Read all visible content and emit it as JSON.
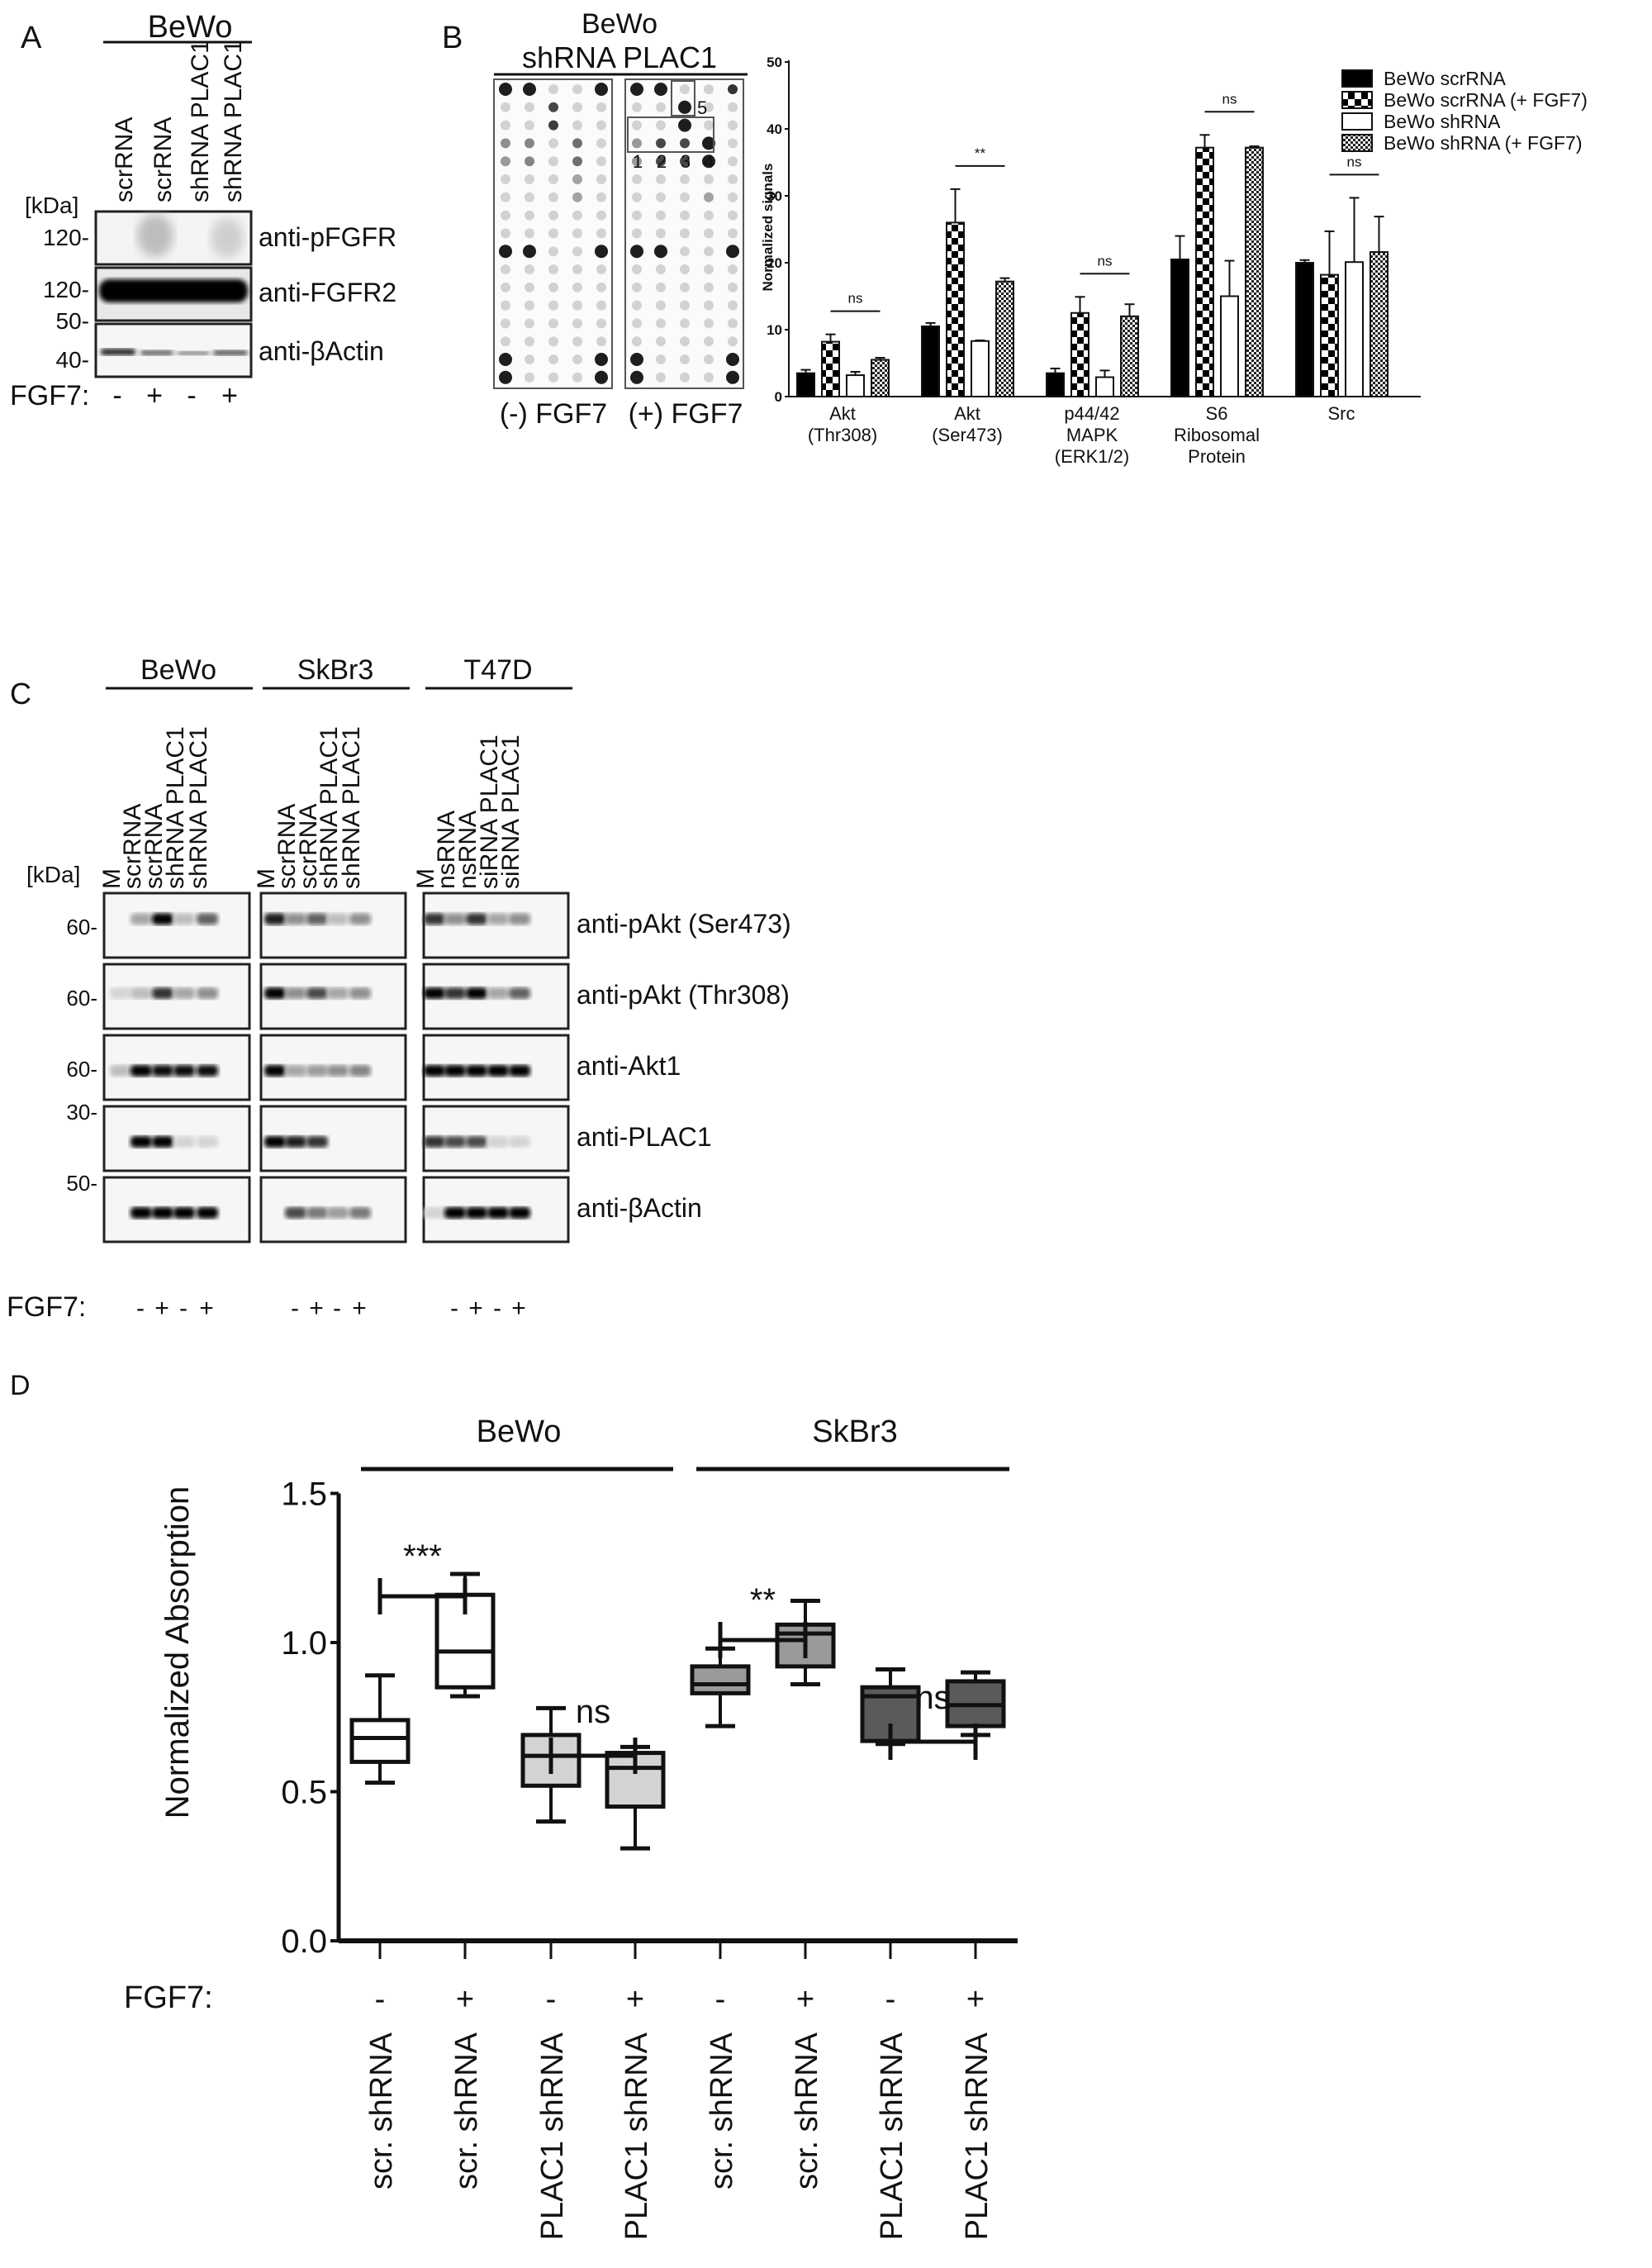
{
  "panel_a": {
    "letter": "A",
    "cell_line": "BeWo",
    "lanes": [
      "scrRNA",
      "scrRNA",
      "shRNA PLAC1",
      "shRNA PLAC1"
    ],
    "kda_label": "[kDa]",
    "markers": [
      "120-",
      "120-",
      "50-",
      "40-"
    ],
    "blots": [
      "anti-pFGFR",
      "anti-FGFR2",
      "anti-βActin"
    ],
    "fgf7_label": "FGF7:",
    "fgf7": [
      "-",
      "+",
      "-",
      "+"
    ]
  },
  "panel_b": {
    "letter": "B",
    "title_line1": "BeWo",
    "title_line2": "shRNA PLAC1",
    "array_labels": [
      "(-) FGF7",
      "(+) FGF7"
    ],
    "box_numbers": [
      "1",
      "2",
      "3",
      "4",
      "5"
    ]
  },
  "panel_c": {
    "letter": "C",
    "kda_label": "[kDa]",
    "groups": [
      {
        "name": "BeWo",
        "lanes": [
          "M",
          "scrRNA",
          "scrRNA",
          "shRNA PLAC1",
          "shRNA PLAC1"
        ]
      },
      {
        "name": "SkBr3",
        "lanes": [
          "M",
          "scrRNA",
          "scrRNA",
          "shRNA PLAC1",
          "shRNA PLAC1"
        ]
      },
      {
        "name": "T47D",
        "lanes": [
          "M",
          "nsRNA",
          "nsRNA",
          "siRNA PLAC1",
          "siRNA PLAC1"
        ]
      }
    ],
    "markers": [
      "60-",
      "60-",
      "60-",
      "30-",
      "50-"
    ],
    "blots": [
      "anti-pAkt (Ser473)",
      "anti-pAkt (Thr308)",
      "anti-Akt1",
      "anti-PLAC1",
      "anti-βActin"
    ],
    "fgf7_label": "FGF7:",
    "fgf7": [
      "-",
      "+",
      "-",
      "+"
    ]
  },
  "panel_d": {
    "letter": "D",
    "fgf7_label": "FGF7:"
  },
  "chart_data": [
    {
      "type": "bar",
      "title": "",
      "xlabel": "",
      "ylabel": "Normalized signals",
      "ylim": [
        0,
        50
      ],
      "yticks": [
        0,
        10,
        20,
        30,
        40,
        50
      ],
      "categories": [
        "Akt (Thr308)",
        "Akt (Ser473)",
        "p44/42 MAPK (ERK1/2)",
        "S6 Ribosomal Protein",
        "Src"
      ],
      "category_lines": [
        [
          "Akt",
          "(Thr308)"
        ],
        [
          "Akt",
          "(Ser473)"
        ],
        [
          "p44/42",
          "MAPK",
          "(ERK1/2)"
        ],
        [
          "S6",
          "Ribosomal",
          "Protein"
        ],
        [
          "Src"
        ]
      ],
      "series": [
        {
          "name": "BeWo scrRNA",
          "pattern": "solid-black",
          "values": [
            3.5,
            10.5,
            3.5,
            20.5,
            20.0
          ],
          "error_top": [
            4.0,
            11.0,
            4.2,
            24.0,
            20.4
          ]
        },
        {
          "name": "BeWo scrRNA (+ FGF7)",
          "pattern": "checker",
          "values": [
            8.2,
            26.0,
            12.5,
            37.2,
            18.2
          ],
          "error_top": [
            9.3,
            31.0,
            14.9,
            39.1,
            24.7
          ]
        },
        {
          "name": "BeWo shRNA",
          "pattern": "white",
          "values": [
            3.2,
            8.3,
            2.9,
            15.0,
            20.1
          ],
          "error_top": [
            3.7,
            8.4,
            3.9,
            20.3,
            29.7
          ]
        },
        {
          "name": "BeWo shRNA (+ FGF7)",
          "pattern": "fine-checker",
          "values": [
            5.5,
            17.2,
            12.0,
            37.2,
            21.6
          ],
          "error_top": [
            5.8,
            17.7,
            13.8,
            37.4,
            26.9
          ]
        }
      ],
      "significance": [
        "ns",
        "**",
        "ns",
        "ns",
        "ns"
      ],
      "legend_position": "top-right"
    },
    {
      "type": "box",
      "title": "",
      "xlabel": "",
      "ylabel": "Normalized Absorption",
      "ylim": [
        0,
        1.5
      ],
      "yticks": [
        "0.0",
        "0.5",
        "1.0",
        "1.5"
      ],
      "groups": [
        "BeWo",
        "SkBr3"
      ],
      "categories": [
        "scr. shRNA",
        "scr. shRNA",
        "PLAC1 shRNA",
        "PLAC1 shRNA",
        "scr. shRNA",
        "scr. shRNA",
        "PLAC1 shRNA",
        "PLAC1 shRNA"
      ],
      "fgf7": [
        "-",
        "+",
        "-",
        "+",
        "-",
        "+",
        "-",
        "+"
      ],
      "fills": [
        "#ffffff",
        "#ffffff",
        "#d3d3d3",
        "#d3d3d3",
        "#9a9a9a",
        "#9a9a9a",
        "#5a5a5a",
        "#5a5a5a"
      ],
      "boxes": [
        {
          "min": 0.53,
          "q1": 0.6,
          "median": 0.68,
          "q3": 0.74,
          "max": 0.89
        },
        {
          "min": 0.82,
          "q1": 0.85,
          "median": 0.97,
          "q3": 1.16,
          "max": 1.23
        },
        {
          "min": 0.4,
          "q1": 0.52,
          "median": 0.62,
          "q3": 0.69,
          "max": 0.78
        },
        {
          "min": 0.31,
          "q1": 0.45,
          "median": 0.58,
          "q3": 0.63,
          "max": 0.65
        },
        {
          "min": 0.72,
          "q1": 0.83,
          "median": 0.86,
          "q3": 0.92,
          "max": 0.98
        },
        {
          "min": 0.86,
          "q1": 0.92,
          "median": 1.03,
          "q3": 1.06,
          "max": 1.14
        },
        {
          "min": 0.66,
          "q1": 0.67,
          "median": 0.82,
          "q3": 0.85,
          "max": 0.91
        },
        {
          "min": 0.69,
          "q1": 0.72,
          "median": 0.79,
          "q3": 0.87,
          "max": 0.9
        }
      ],
      "significance": [
        {
          "pair": [
            1,
            2
          ],
          "label": "***"
        },
        {
          "pair": [
            3,
            4
          ],
          "label": "ns"
        },
        {
          "pair": [
            5,
            6
          ],
          "label": "**"
        },
        {
          "pair": [
            7,
            8
          ],
          "label": "ns"
        }
      ]
    }
  ]
}
